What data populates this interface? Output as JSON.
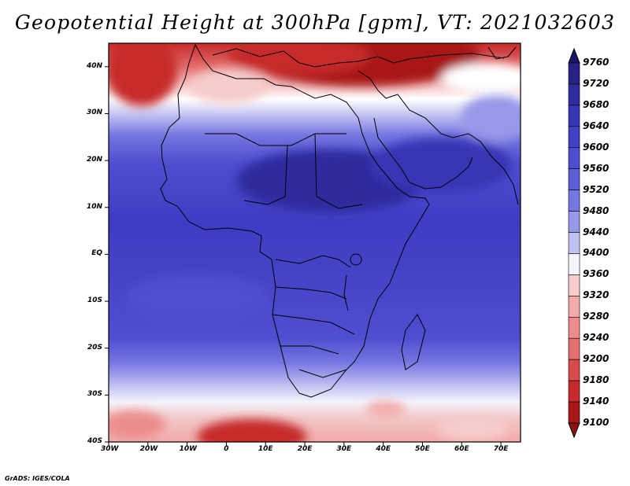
{
  "title": "Geopotential Height at 300hPa [gpm], VT: 2021032603",
  "map": {
    "projection": "lat-lon",
    "lon_range": [
      -30,
      75
    ],
    "lat_range": [
      -40,
      45
    ],
    "description_units": "gpm",
    "field": "300hPa geopotential height"
  },
  "lon_ticks": [
    {
      "lon": -30,
      "label": "30W"
    },
    {
      "lon": -20,
      "label": "20W"
    },
    {
      "lon": -10,
      "label": "10W"
    },
    {
      "lon": 0,
      "label": "0"
    },
    {
      "lon": 10,
      "label": "10E"
    },
    {
      "lon": 20,
      "label": "20E"
    },
    {
      "lon": 30,
      "label": "30E"
    },
    {
      "lon": 40,
      "label": "40E"
    },
    {
      "lon": 50,
      "label": "50E"
    },
    {
      "lon": 60,
      "label": "60E"
    },
    {
      "lon": 70,
      "label": "70E"
    }
  ],
  "lat_ticks": [
    {
      "lat": 40,
      "label": "40N"
    },
    {
      "lat": 30,
      "label": "30N"
    },
    {
      "lat": 20,
      "label": "20N"
    },
    {
      "lat": 10,
      "label": "10N"
    },
    {
      "lat": 0,
      "label": "EQ"
    },
    {
      "lat": -10,
      "label": "10S"
    },
    {
      "lat": -20,
      "label": "20S"
    },
    {
      "lat": -30,
      "label": "30S"
    },
    {
      "lat": -40,
      "label": "40S"
    }
  ],
  "colorbar": {
    "levels": [
      9760,
      9720,
      9680,
      9640,
      9600,
      9560,
      9520,
      9480,
      9440,
      9400,
      9360,
      9320,
      9280,
      9240,
      9200,
      9180,
      9140,
      9100
    ],
    "colors": [
      "#1a1466",
      "#262183",
      "#2f2c9d",
      "#3835b5",
      "#4340c6",
      "#4f4ed0",
      "#5e5ed9",
      "#7576e0",
      "#9898e8",
      "#c2c2f2",
      "#f4f4fc",
      "#f6cccc",
      "#f2aaaa",
      "#ec8c8c",
      "#e46f6f",
      "#d94a4a",
      "#c62a2a",
      "#a81818",
      "#8c1010"
    ]
  },
  "footer": "GrADS: IGES/COLA"
}
